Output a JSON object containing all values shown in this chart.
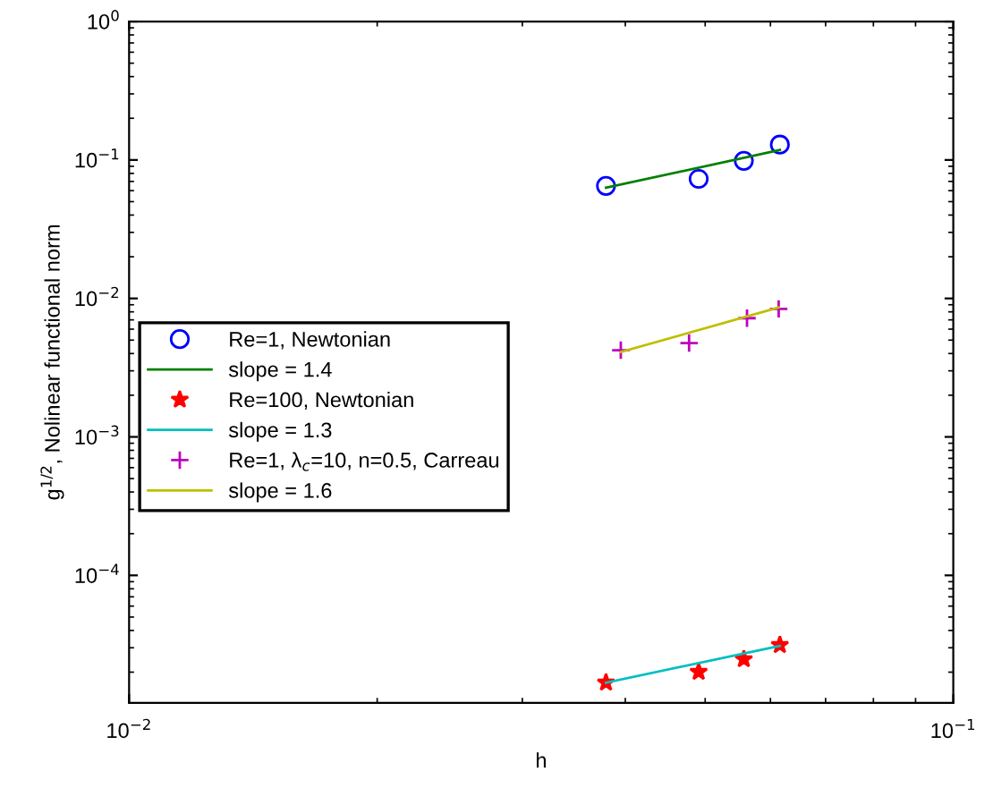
{
  "chart_data": {
    "type": "scatter",
    "xlabel": "h",
    "ylabel": "g$^{1/2}$, Nolinear functional norm",
    "log": "xy",
    "xlim": [
      0.01,
      0.1
    ],
    "xticks": [
      {
        "value": 0.01,
        "label": "10$^{−2}$"
      },
      {
        "value": 0.1,
        "label": "10$^{−1}$"
      }
    ],
    "ylim": [
      1.2e-05,
      1
    ],
    "yticks": [
      {
        "value": 0.0001,
        "label": "10$^{−4}$"
      },
      {
        "value": 0.001,
        "label": "10$^{−3}$"
      },
      {
        "value": 0.01,
        "label": "10$^{−2}$"
      },
      {
        "value": 0.1,
        "label": "10$^{−1}$"
      },
      {
        "value": 1,
        "label": "10$^{0}$"
      }
    ],
    "grid": false,
    "legend": "left",
    "series": [
      {
        "name": "Re=1, Newtonian",
        "marker": "circle",
        "color": "#0000ff",
        "x": [
          0.0379,
          0.0491,
          0.0557,
          0.0616
        ],
        "values": [
          0.065,
          0.073,
          0.0985,
          0.129
        ]
      },
      {
        "name": "slope = 1.4",
        "type": "line",
        "color": "#008000",
        "x": [
          0.0379,
          0.0616
        ],
        "values": [
          0.063,
          0.118
        ]
      },
      {
        "name": "Re=100, Newtonian",
        "marker": "star",
        "color": "#ff0000",
        "x": [
          0.0379,
          0.0491,
          0.0557,
          0.0616
        ],
        "values": [
          1.68e-05,
          2.01e-05,
          2.48e-05,
          3.14e-05
        ]
      },
      {
        "name": "slope = 1.3",
        "type": "line",
        "color": "#00bfbf",
        "x": [
          0.0379,
          0.0616
        ],
        "values": [
          1.68e-05,
          3.1e-05
        ]
      },
      {
        "name": "Re=1, λ$_{c}$=10, n=0.5, Carreau",
        "marker": "cross",
        "color": "#bf00bf",
        "x": [
          0.0395,
          0.0478,
          0.0562,
          0.0614
        ],
        "values": [
          0.00423,
          0.00476,
          0.0072,
          0.0084
        ]
      },
      {
        "name": "slope = 1.6",
        "type": "line",
        "color": "#bfbf00",
        "x": [
          0.0395,
          0.0614
        ],
        "values": [
          0.0041,
          0.0086
        ]
      }
    ]
  }
}
